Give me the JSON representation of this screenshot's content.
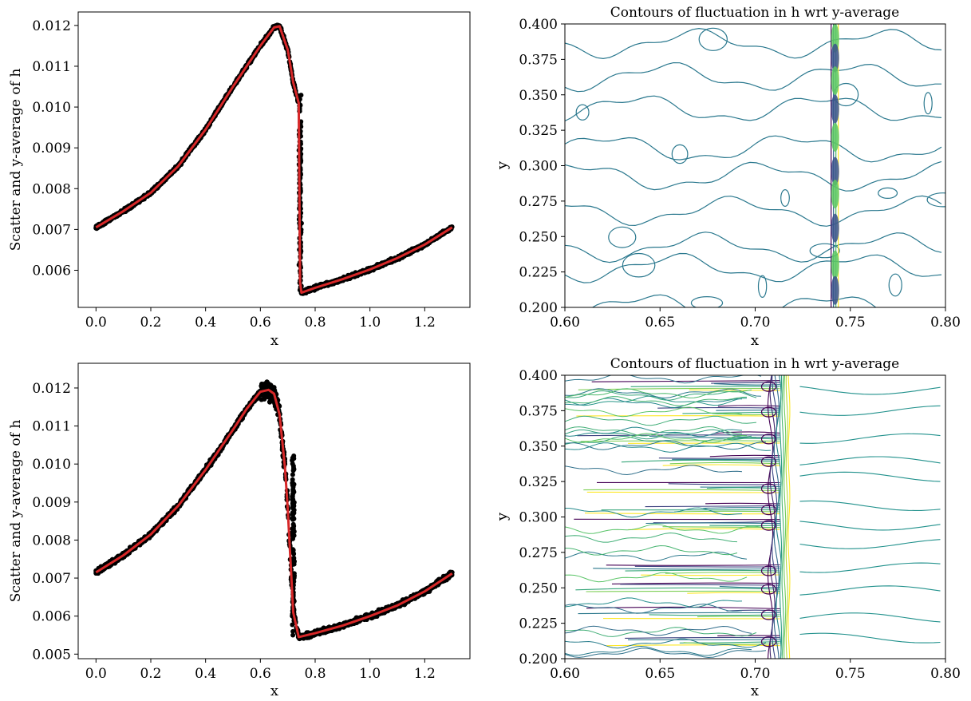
{
  "chart_data": [
    {
      "type": "scatter",
      "panel": "top-left",
      "title": "",
      "xlabel": "x",
      "ylabel": "Scatter and y-average of h",
      "xlim": [
        -0.065,
        1.365
      ],
      "ylim": [
        0.00509,
        0.01233
      ],
      "xticks": [
        0.0,
        0.2,
        0.4,
        0.6,
        0.8,
        1.0,
        1.2
      ],
      "xtick_labels": [
        "0.0",
        "0.2",
        "0.4",
        "0.6",
        "0.8",
        "1.0",
        "1.2"
      ],
      "yticks": [
        0.006,
        0.007,
        0.008,
        0.009,
        0.01,
        0.011,
        0.012
      ],
      "ytick_labels": [
        "0.006",
        "0.007",
        "0.008",
        "0.009",
        "0.010",
        "0.011",
        "0.012"
      ],
      "grid": false,
      "legend": "none",
      "series": [
        {
          "kind": "scatter",
          "color": "#000000",
          "spread": 6e-05,
          "x": [
            0.0,
            0.1,
            0.2,
            0.3,
            0.4,
            0.5,
            0.6,
            0.65,
            0.67,
            0.7,
            0.72,
            0.74,
            0.745,
            0.75,
            0.8,
            0.9,
            1.0,
            1.1,
            1.2,
            1.3
          ],
          "y": [
            0.00705,
            0.00745,
            0.0079,
            0.00855,
            0.00945,
            0.0105,
            0.0115,
            0.01195,
            0.01198,
            0.0114,
            0.0106,
            0.0101,
            0.0057,
            0.00545,
            0.00557,
            0.00578,
            0.00602,
            0.0063,
            0.00663,
            0.00705
          ]
        },
        {
          "kind": "line",
          "color": "#d62728",
          "x": [
            0.0,
            0.1,
            0.2,
            0.3,
            0.4,
            0.5,
            0.6,
            0.65,
            0.67,
            0.7,
            0.72,
            0.74,
            0.745,
            0.75,
            0.8,
            0.9,
            1.0,
            1.1,
            1.2,
            1.3
          ],
          "y": [
            0.00705,
            0.00745,
            0.0079,
            0.00855,
            0.00945,
            0.0105,
            0.0115,
            0.01195,
            0.01198,
            0.0114,
            0.0106,
            0.0101,
            0.0057,
            0.00545,
            0.00557,
            0.00578,
            0.00602,
            0.0063,
            0.00663,
            0.00705
          ]
        }
      ]
    },
    {
      "type": "contour",
      "panel": "top-right",
      "title": "Contours of fluctuation in h wrt y-average",
      "xlabel": "x",
      "ylabel": "y",
      "xlim": [
        0.6,
        0.8
      ],
      "ylim": [
        0.2,
        0.4
      ],
      "xticks": [
        0.6,
        0.65,
        0.7,
        0.75,
        0.8
      ],
      "xtick_labels": [
        "0.60",
        "0.65",
        "0.70",
        "0.75",
        "0.80"
      ],
      "yticks": [
        0.2,
        0.225,
        0.25,
        0.275,
        0.3,
        0.325,
        0.35,
        0.375,
        0.4
      ],
      "ytick_labels": [
        "0.200",
        "0.225",
        "0.250",
        "0.275",
        "0.300",
        "0.325",
        "0.350",
        "0.375",
        "0.400"
      ],
      "grid": false,
      "legend": "none",
      "colormap": "viridis",
      "shock_x": 0.742,
      "contour_color": "#2a788e"
    },
    {
      "type": "scatter",
      "panel": "bottom-left",
      "title": "",
      "xlabel": "x",
      "ylabel": "Scatter and y-average of h",
      "xlim": [
        -0.065,
        1.365
      ],
      "ylim": [
        0.00488,
        0.01265
      ],
      "xticks": [
        0.0,
        0.2,
        0.4,
        0.6,
        0.8,
        1.0,
        1.2
      ],
      "xtick_labels": [
        "0.0",
        "0.2",
        "0.4",
        "0.6",
        "0.8",
        "1.0",
        "1.2"
      ],
      "yticks": [
        0.005,
        0.006,
        0.007,
        0.008,
        0.009,
        0.01,
        0.011,
        0.012
      ],
      "ytick_labels": [
        "0.005",
        "0.006",
        "0.007",
        "0.008",
        "0.009",
        "0.010",
        "0.011",
        "0.012"
      ],
      "grid": false,
      "legend": "none",
      "series": [
        {
          "kind": "scatter",
          "color": "#000000",
          "spread": 9e-05,
          "x": [
            0.0,
            0.1,
            0.2,
            0.3,
            0.4,
            0.5,
            0.55,
            0.6,
            0.63,
            0.65,
            0.67,
            0.69,
            0.7,
            0.72,
            0.74,
            0.8,
            0.9,
            1.0,
            1.1,
            1.2,
            1.3
          ],
          "y": [
            0.00715,
            0.0076,
            0.00815,
            0.0089,
            0.00985,
            0.0109,
            0.01145,
            0.0119,
            0.01195,
            0.01185,
            0.0113,
            0.0099,
            0.0088,
            0.0061,
            0.00545,
            0.00555,
            0.00575,
            0.006,
            0.00628,
            0.00665,
            0.00712
          ]
        },
        {
          "kind": "line",
          "color": "#d62728",
          "x": [
            0.0,
            0.1,
            0.2,
            0.3,
            0.4,
            0.5,
            0.55,
            0.6,
            0.63,
            0.65,
            0.67,
            0.69,
            0.7,
            0.72,
            0.74,
            0.8,
            0.9,
            1.0,
            1.1,
            1.2,
            1.3
          ],
          "y": [
            0.00715,
            0.0076,
            0.00815,
            0.0089,
            0.00985,
            0.0109,
            0.01145,
            0.0119,
            0.01195,
            0.01185,
            0.0113,
            0.0099,
            0.0088,
            0.0061,
            0.00545,
            0.00555,
            0.00575,
            0.006,
            0.00628,
            0.00665,
            0.00712
          ]
        }
      ]
    },
    {
      "type": "contour",
      "panel": "bottom-right",
      "title": "Contours of fluctuation in h wrt y-average",
      "xlabel": "x",
      "ylabel": "y",
      "xlim": [
        0.6,
        0.8
      ],
      "ylim": [
        0.2,
        0.4
      ],
      "xticks": [
        0.6,
        0.65,
        0.7,
        0.75,
        0.8
      ],
      "xtick_labels": [
        "0.60",
        "0.65",
        "0.70",
        "0.75",
        "0.80"
      ],
      "yticks": [
        0.2,
        0.225,
        0.25,
        0.275,
        0.3,
        0.325,
        0.35,
        0.375,
        0.4
      ],
      "ytick_labels": [
        "0.200",
        "0.225",
        "0.250",
        "0.275",
        "0.300",
        "0.325",
        "0.350",
        "0.375",
        "0.400"
      ],
      "grid": false,
      "legend": "none",
      "colormap": "viridis",
      "shock_x": 0.713,
      "streak_y": [
        0.392,
        0.374,
        0.355,
        0.339,
        0.32,
        0.305,
        0.294,
        0.262,
        0.249,
        0.231,
        0.212
      ]
    }
  ]
}
